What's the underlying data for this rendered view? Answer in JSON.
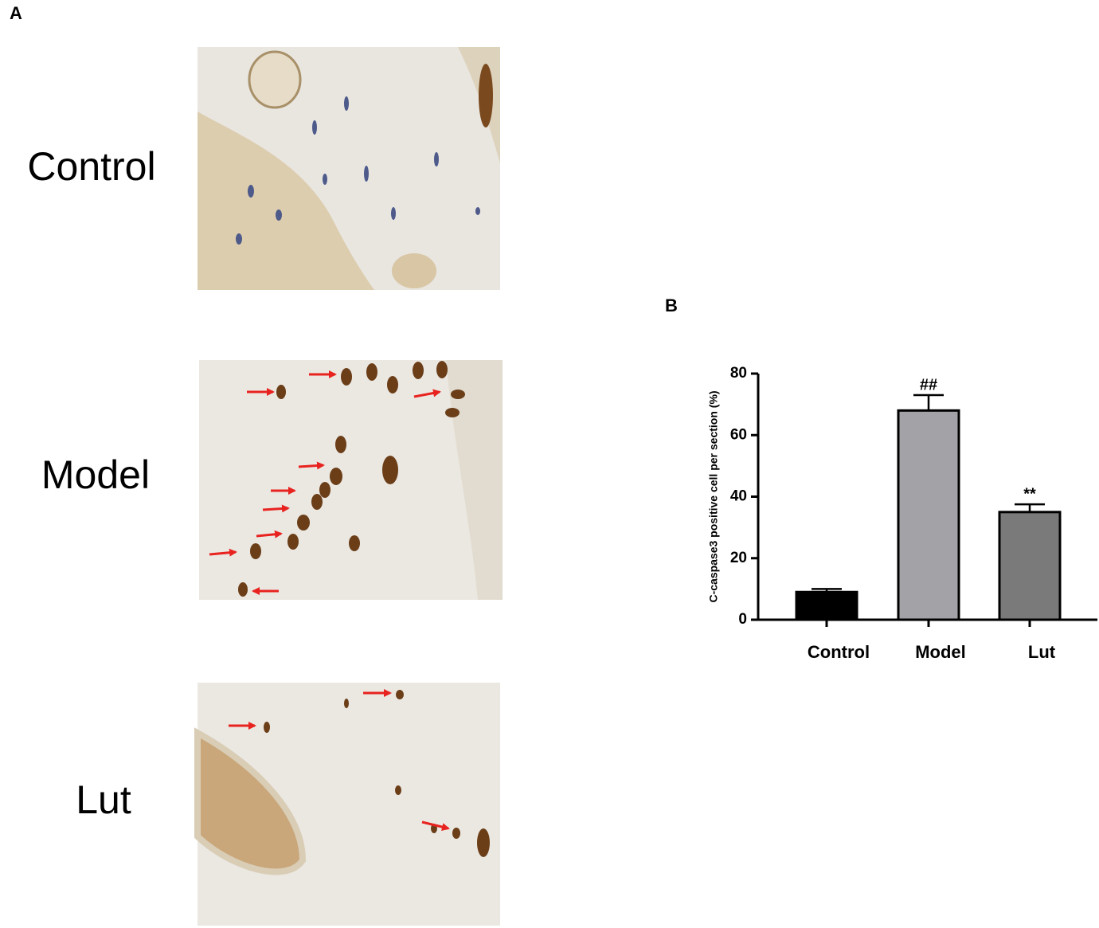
{
  "panel_a": {
    "label": "A",
    "rows": [
      "Control",
      "Model",
      "Lut"
    ]
  },
  "chart_data": {
    "type": "bar",
    "panel_label": "B",
    "ylabel": "C-caspase3 positive cell per section (%)",
    "categories": [
      "Control",
      "Model",
      "Lut"
    ],
    "values": [
      9,
      68,
      35
    ],
    "errors": [
      1,
      5,
      2.5
    ],
    "colors": [
      "#000000",
      "#a2a2a7",
      "#7a7a7a"
    ],
    "annotations": [
      null,
      "##",
      "**"
    ],
    "ylim": [
      0,
      80
    ],
    "yticks": [
      0,
      20,
      40,
      60,
      80
    ]
  }
}
